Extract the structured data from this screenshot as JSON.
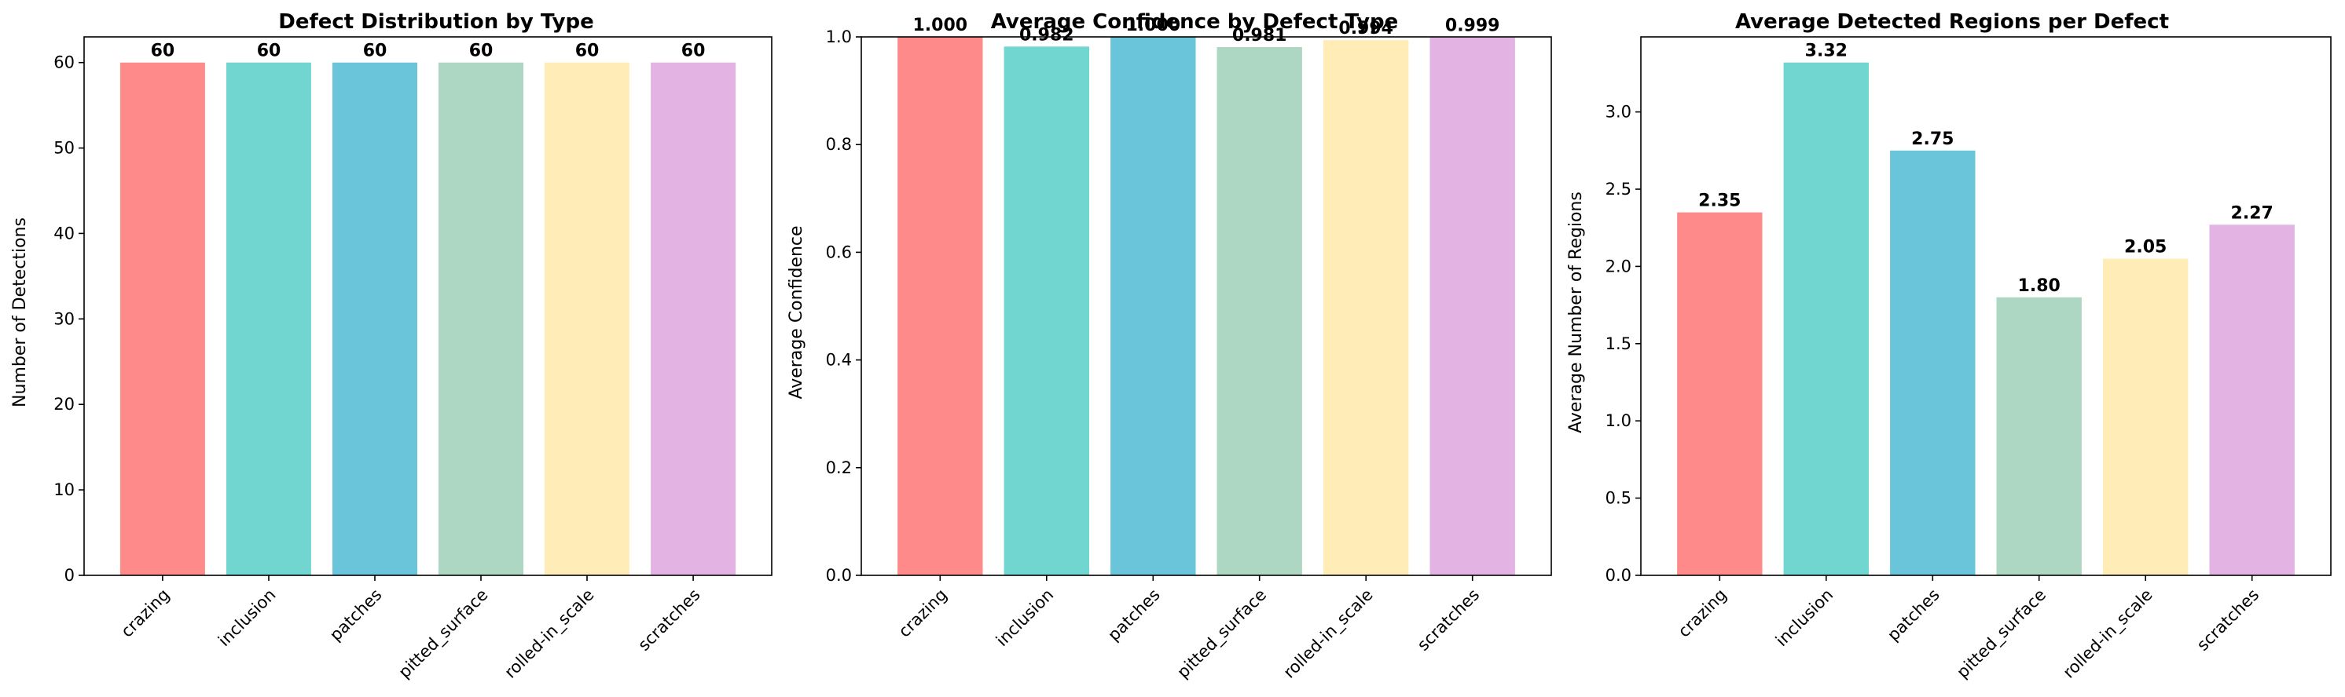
{
  "colors": [
    "#FF8A8A",
    "#72D6D0",
    "#6AC5DA",
    "#ADD7C3",
    "#FFECB6",
    "#E3B3E3"
  ],
  "chart_data": [
    {
      "type": "bar",
      "title": "Defect Distribution by Type",
      "xlabel": "",
      "ylabel": "Number of Detections",
      "categories": [
        "crazing",
        "inclusion",
        "patches",
        "pitted_surface",
        "rolled-in_scale",
        "scratches"
      ],
      "values": [
        60,
        60,
        60,
        60,
        60,
        60
      ],
      "value_labels": [
        "60",
        "60",
        "60",
        "60",
        "60",
        "60"
      ],
      "ylim": [
        0,
        63
      ],
      "yticks": [
        0,
        10,
        20,
        30,
        40,
        50,
        60
      ],
      "ytick_labels": [
        "0",
        "10",
        "20",
        "30",
        "40",
        "50",
        "60"
      ],
      "grid": false
    },
    {
      "type": "bar",
      "title": "Average Confidence by Defect Type",
      "xlabel": "",
      "ylabel": "Average Confidence",
      "categories": [
        "crazing",
        "inclusion",
        "patches",
        "pitted_surface",
        "rolled-in_scale",
        "scratches"
      ],
      "values": [
        1.0,
        0.982,
        1.0,
        0.981,
        0.994,
        0.999
      ],
      "value_labels": [
        "1.000",
        "0.982",
        "1.000",
        "0.981",
        "0.994",
        "0.999"
      ],
      "ylim": [
        0,
        1.0
      ],
      "yticks": [
        0,
        0.2,
        0.4,
        0.6,
        0.8,
        1.0
      ],
      "ytick_labels": [
        "0.0",
        "0.2",
        "0.4",
        "0.6",
        "0.8",
        "1.0"
      ],
      "grid": false
    },
    {
      "type": "bar",
      "title": "Average Detected Regions per Defect",
      "xlabel": "",
      "ylabel": "Average Number of Regions",
      "categories": [
        "crazing",
        "inclusion",
        "patches",
        "pitted_surface",
        "rolled-in_scale",
        "scratches"
      ],
      "values": [
        2.35,
        3.32,
        2.75,
        1.8,
        2.05,
        2.27
      ],
      "value_labels": [
        "2.35",
        "3.32",
        "2.75",
        "1.80",
        "2.05",
        "2.27"
      ],
      "ylim": [
        0,
        3.486
      ],
      "yticks": [
        0,
        0.5,
        1.0,
        1.5,
        2.0,
        2.5,
        3.0
      ],
      "ytick_labels": [
        "0.0",
        "0.5",
        "1.0",
        "1.5",
        "2.0",
        "2.5",
        "3.0"
      ],
      "grid": false
    }
  ]
}
